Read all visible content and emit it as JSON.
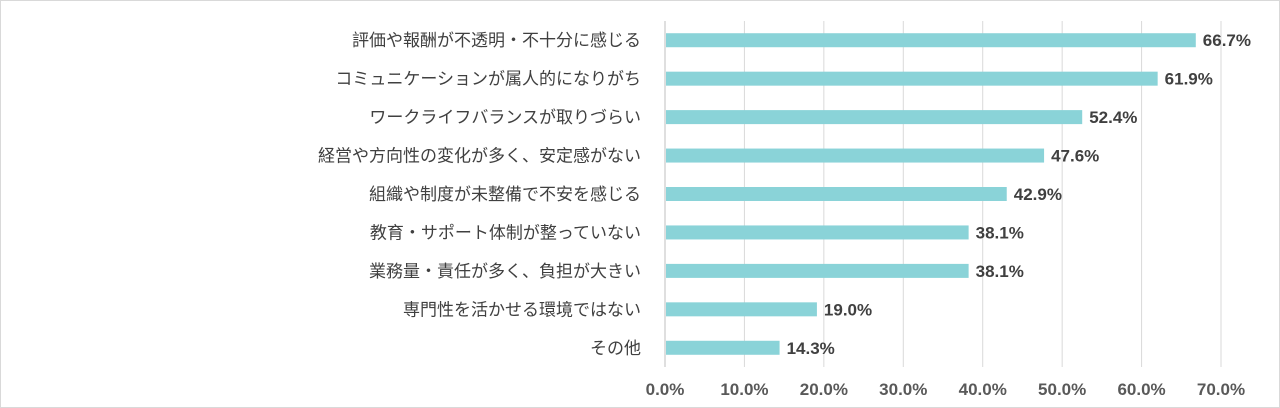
{
  "chart_data": {
    "type": "bar",
    "orientation": "horizontal",
    "categories": [
      "評価や報酬が不透明・不十分に感じる",
      "コミュニケーションが属人的になりがち",
      "ワークライフバランスが取りづらい",
      "経営や方向性の変化が多く、安定感がない",
      "組織や制度が未整備で不安を感じる",
      "教育・サポート体制が整っていない",
      "業務量・責任が多く、負担が大きい",
      "専門性を活かせる環境ではない",
      "その他"
    ],
    "values": [
      66.7,
      61.9,
      52.4,
      47.6,
      42.9,
      38.1,
      38.1,
      19.0,
      14.3
    ],
    "value_labels": [
      "66.7%",
      "61.9%",
      "52.4%",
      "47.6%",
      "42.9%",
      "38.1%",
      "38.1%",
      "19.0%",
      "14.3%"
    ],
    "x_ticks": [
      "0.0%",
      "10.0%",
      "20.0%",
      "30.0%",
      "40.0%",
      "50.0%",
      "60.0%",
      "70.0%"
    ],
    "xlim": [
      0,
      70
    ],
    "grid": "vertical",
    "bar_color": "#8ad3d8",
    "title": "",
    "xlabel": "",
    "ylabel": ""
  }
}
